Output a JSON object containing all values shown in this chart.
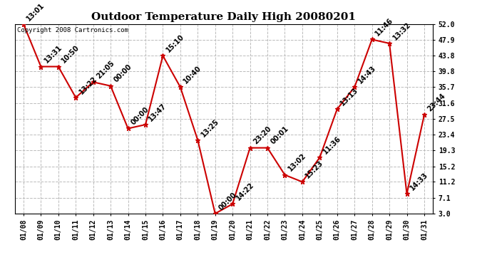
{
  "title": "Outdoor Temperature Daily High 20080201",
  "copyright": "Copyright 2008 Cartronics.com",
  "dates": [
    "01/08",
    "01/09",
    "01/10",
    "01/11",
    "01/12",
    "01/13",
    "01/14",
    "01/15",
    "01/16",
    "01/17",
    "01/18",
    "01/19",
    "01/20",
    "01/21",
    "01/22",
    "01/23",
    "01/24",
    "01/25",
    "01/26",
    "01/27",
    "01/28",
    "01/29",
    "01/30",
    "01/31"
  ],
  "values": [
    52.0,
    41.0,
    41.0,
    33.0,
    37.0,
    36.0,
    25.0,
    26.0,
    43.8,
    35.7,
    22.0,
    3.0,
    5.5,
    20.0,
    20.0,
    13.0,
    11.2,
    17.5,
    30.0,
    35.7,
    48.0,
    47.0,
    8.1,
    28.5
  ],
  "time_labels": [
    "13:01",
    "13:31",
    "10:50",
    "13:22",
    "21:05",
    "00:00",
    "00:00",
    "13:47",
    "15:10",
    "10:40",
    "13:25",
    "00:00",
    "14:22",
    "23:20",
    "00:01",
    "13:02",
    "15:23",
    "11:36",
    "13:13",
    "14:43",
    "11:46",
    "13:32",
    "14:33",
    "23:44"
  ],
  "ylim": [
    3.0,
    52.0
  ],
  "yticks": [
    3.0,
    7.1,
    11.2,
    15.2,
    19.3,
    23.4,
    27.5,
    31.6,
    35.7,
    39.8,
    43.8,
    47.9,
    52.0
  ],
  "line_color": "#cc0000",
  "marker_color": "#cc0000",
  "bg_color": "#ffffff",
  "grid_color": "#bbbbbb",
  "title_fontsize": 11,
  "tick_fontsize": 7,
  "annot_fontsize": 7,
  "copyright_fontsize": 6.5
}
